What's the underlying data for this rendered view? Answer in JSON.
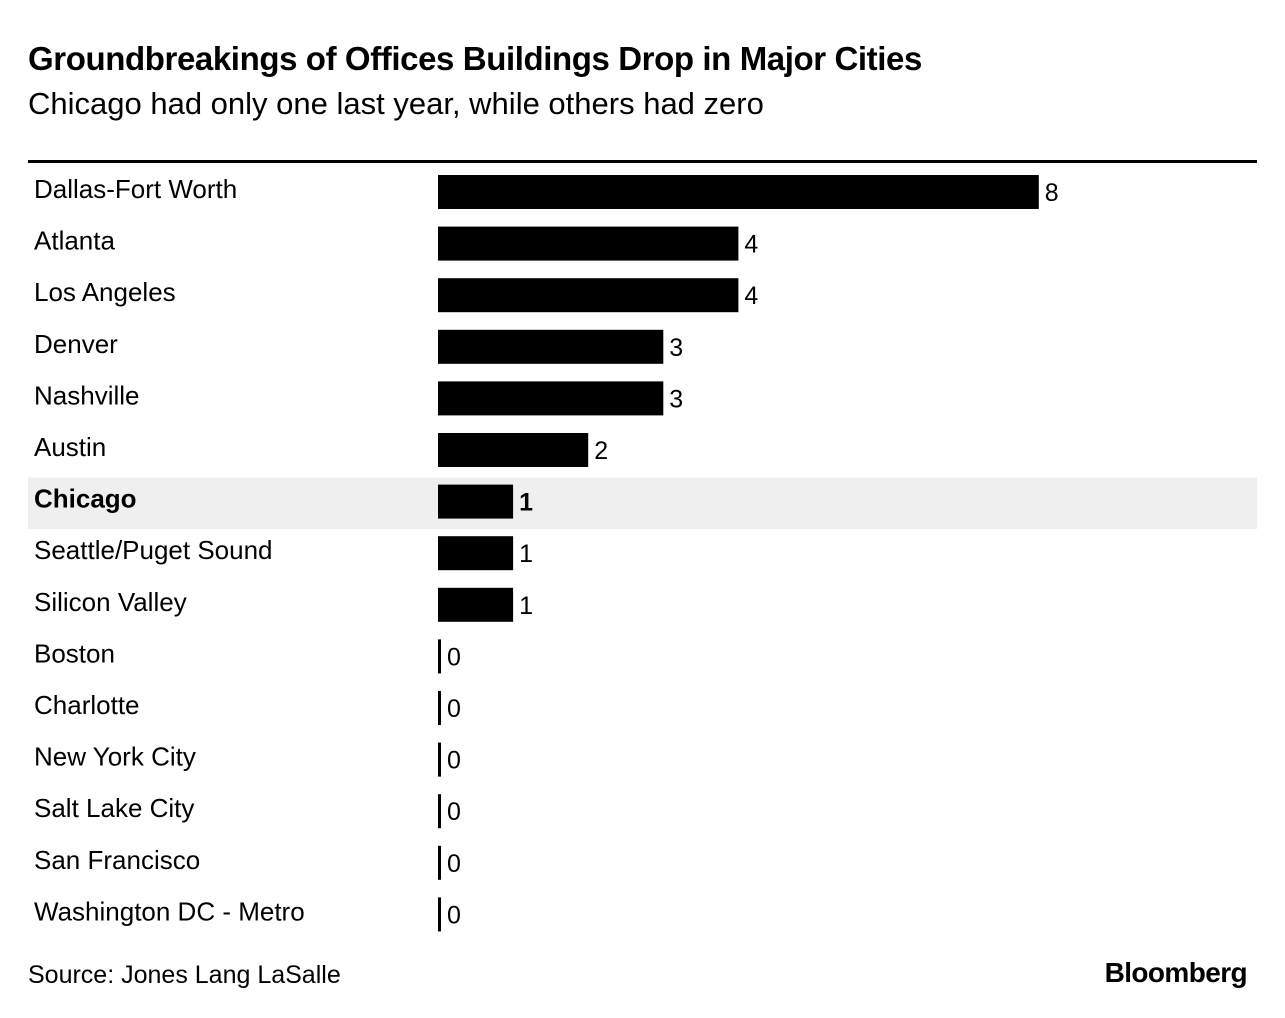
{
  "title": "Groundbreakings of Offices Buildings Drop in Major Cities",
  "subtitle": "Chicago had only one last year, while others had zero",
  "source": "Source: Jones Lang LaSalle",
  "brand": "Bloomberg",
  "colors": {
    "bar": "#000000",
    "highlight_row": "#efefef",
    "text": "#000000",
    "background": "#ffffff"
  },
  "chart_data": {
    "type": "bar",
    "orientation": "horizontal",
    "title": "Groundbreakings of Offices Buildings Drop in Major Cities",
    "subtitle": "Chicago had only one last year, while others had zero",
    "categories": [
      "Dallas-Fort Worth",
      "Atlanta",
      "Los Angeles",
      "Denver",
      "Nashville",
      "Austin",
      "Chicago",
      "Seattle/Puget Sound",
      "Silicon Valley",
      "Boston",
      "Charlotte",
      "New York City",
      "Salt Lake City",
      "San Francisco",
      "Washington DC - Metro"
    ],
    "values": [
      8,
      4,
      4,
      3,
      3,
      2,
      1,
      1,
      1,
      0,
      0,
      0,
      0,
      0,
      0
    ],
    "highlight": "Chicago",
    "xlim": [
      0,
      8
    ],
    "grid": false,
    "legend": "none",
    "data_labels": true
  }
}
